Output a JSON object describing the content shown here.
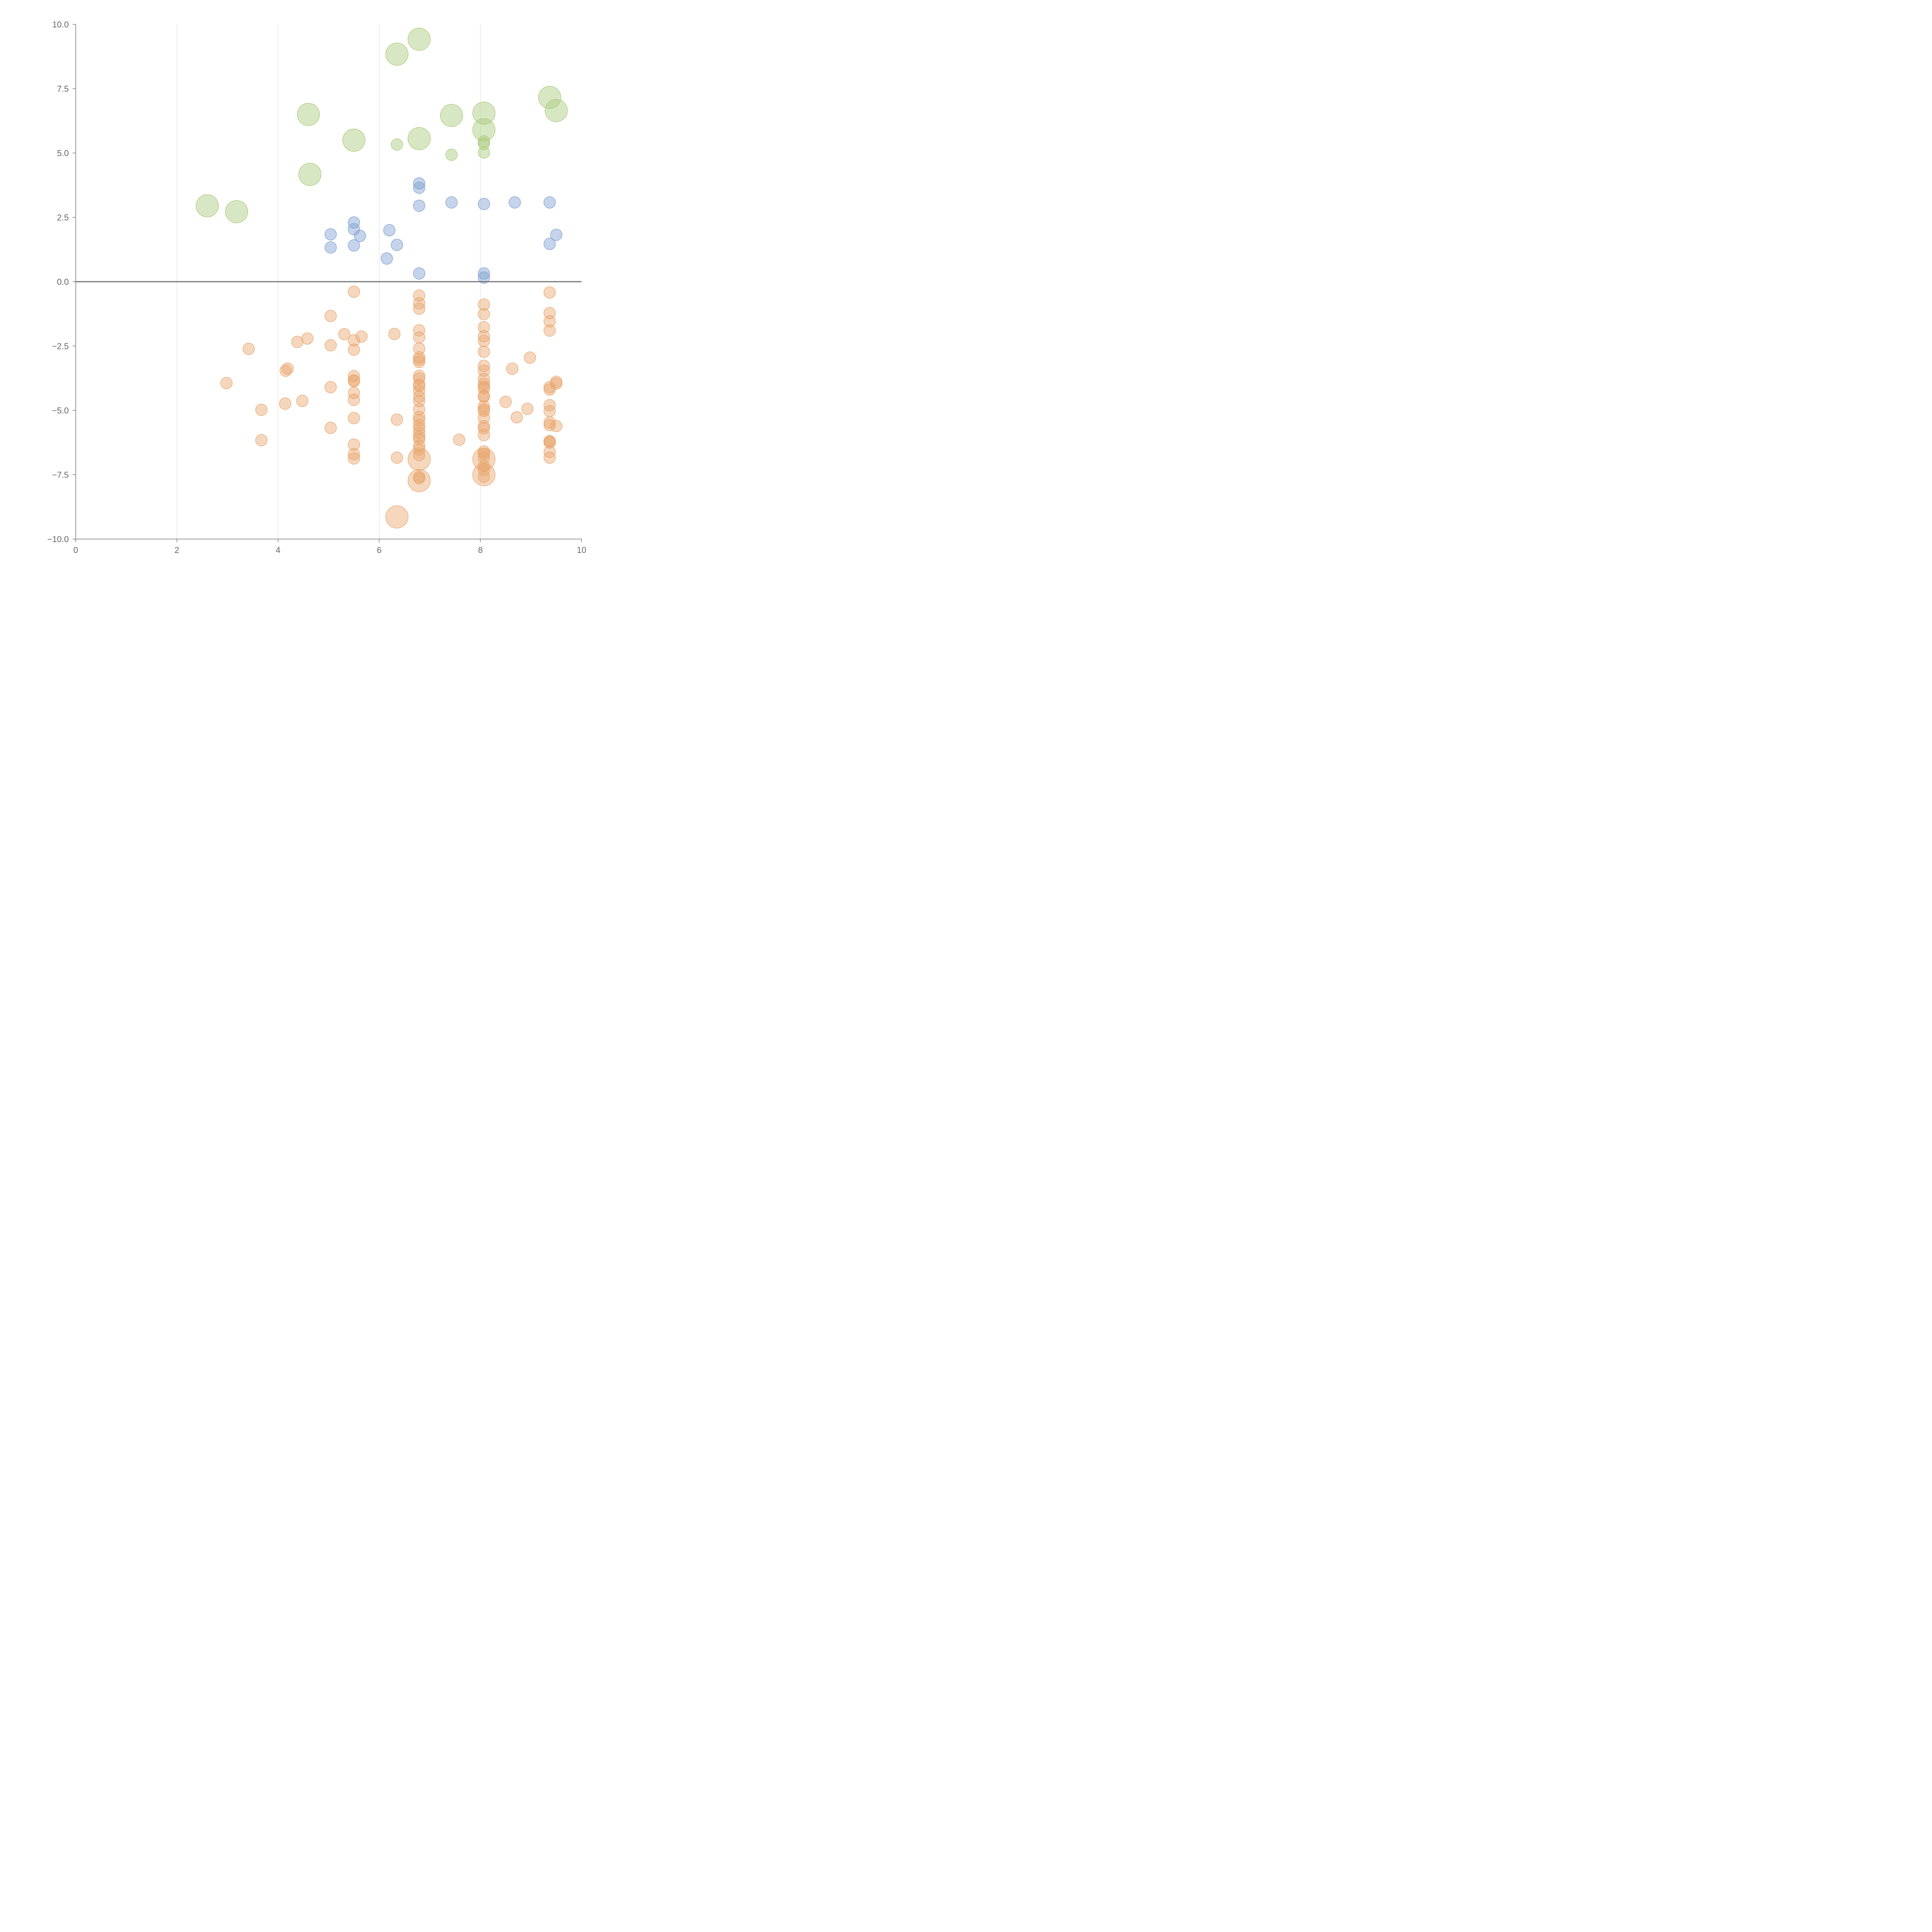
{
  "chart_data": {
    "type": "scatter",
    "title": "",
    "xlabel": "",
    "ylabel": "",
    "xlim": [
      0,
      10
    ],
    "ylim": [
      -10,
      10
    ],
    "x_ticks": [
      "0",
      "2",
      "4",
      "6",
      "8",
      "10"
    ],
    "y_ticks": [
      "10.0",
      "7.5",
      "5.0",
      "2.5",
      "0.0",
      "−2.5",
      "−5.0",
      "−7.5",
      "−10.0"
    ],
    "x_tick_values": [
      0,
      2,
      4,
      6,
      8,
      10
    ],
    "y_tick_values": [
      10,
      7.5,
      5,
      2.5,
      0,
      -2.5,
      -5,
      -7.5,
      -10
    ],
    "grid": "vertical",
    "reference_line_y": 0,
    "series": [
      {
        "color": "#a9c97a",
        "x": [
          2.6,
          3.18,
          4.6,
          4.63,
          5.5,
          6.35,
          6.35,
          6.79,
          6.79,
          7.43,
          7.43,
          8.07,
          8.07,
          8.07,
          8.07,
          8.07,
          9.37,
          9.5
        ],
        "y": [
          2.95,
          2.72,
          6.5,
          4.17,
          5.5,
          8.84,
          5.33,
          9.42,
          5.56,
          6.46,
          4.93,
          6.55,
          5.9,
          5.45,
          5.35,
          5.02,
          7.16,
          6.65
        ],
        "size": [
          2,
          2,
          2,
          2,
          2,
          2,
          1,
          2,
          2,
          2,
          1,
          2,
          2,
          1,
          1,
          1,
          2,
          2
        ]
      },
      {
        "color": "#7fa0d0",
        "x": [
          5.04,
          5.04,
          5.5,
          5.5,
          5.5,
          5.62,
          6.15,
          6.2,
          6.35,
          6.79,
          6.79,
          6.79,
          6.79,
          7.43,
          8.07,
          8.07,
          8.07,
          8.68,
          9.37,
          9.37,
          9.5
        ],
        "y": [
          1.84,
          1.33,
          2.3,
          2.04,
          1.41,
          1.78,
          0.9,
          2.0,
          1.43,
          3.82,
          3.65,
          2.95,
          0.32,
          3.08,
          3.02,
          0.32,
          0.16,
          3.08,
          3.08,
          1.47,
          1.82
        ],
        "size": [
          1,
          1,
          1,
          1,
          1,
          1,
          1,
          1,
          1,
          1,
          1,
          1,
          1,
          1,
          1,
          1,
          1,
          1,
          1,
          1,
          1
        ]
      },
      {
        "color": "#e9a66f",
        "x": [
          2.98,
          3.42,
          3.67,
          3.67,
          4.14,
          4.15,
          4.19,
          4.38,
          4.48,
          4.58,
          5.04,
          5.04,
          5.04,
          5.04,
          5.31,
          5.5,
          5.5,
          5.5,
          5.5,
          5.5,
          5.5,
          5.5,
          5.5,
          5.5,
          5.5,
          5.5,
          5.5,
          5.65,
          6.3,
          6.35,
          6.35,
          6.35,
          6.79,
          6.79,
          6.79,
          6.79,
          6.79,
          6.79,
          6.79,
          6.79,
          6.79,
          6.79,
          6.79,
          6.79,
          6.79,
          6.79,
          6.79,
          6.79,
          6.79,
          6.79,
          6.79,
          6.79,
          6.79,
          6.79,
          6.79,
          6.79,
          6.79,
          6.79,
          6.79,
          6.79,
          6.79,
          6.79,
          6.79,
          7.58,
          8.07,
          8.07,
          8.07,
          8.07,
          8.07,
          8.07,
          8.07,
          8.07,
          8.07,
          8.07,
          8.07,
          8.07,
          8.07,
          8.07,
          8.07,
          8.07,
          8.07,
          8.07,
          8.07,
          8.07,
          8.07,
          8.07,
          8.07,
          8.07,
          8.07,
          8.07,
          8.07,
          8.07,
          8.07,
          8.5,
          8.63,
          8.72,
          8.93,
          8.98,
          9.37,
          9.37,
          9.37,
          9.37,
          9.37,
          9.37,
          9.37,
          9.37,
          9.37,
          9.37,
          9.37,
          9.37,
          9.37,
          9.37,
          9.37,
          9.5,
          9.5,
          9.5
        ],
        "y": [
          -3.94,
          -2.61,
          -4.98,
          -6.16,
          -4.74,
          -3.46,
          -3.38,
          -2.34,
          -4.63,
          -2.21,
          -1.33,
          -2.47,
          -4.1,
          -5.68,
          -2.04,
          -0.39,
          -2.28,
          -2.64,
          -3.67,
          -3.84,
          -3.86,
          -4.32,
          -4.59,
          -5.3,
          -6.33,
          -6.7,
          -6.87,
          -2.13,
          -2.03,
          -5.36,
          -6.84,
          -9.14,
          -0.54,
          -0.84,
          -1.05,
          -1.89,
          -2.17,
          -2.6,
          -2.94,
          -3.03,
          -3.12,
          -3.66,
          -3.76,
          -4.0,
          -4.05,
          -4.24,
          -4.47,
          -4.64,
          -4.96,
          -5.25,
          -5.38,
          -5.58,
          -5.71,
          -5.87,
          -6.03,
          -6.12,
          -6.38,
          -6.52,
          -6.74,
          -6.9,
          -7.59,
          -7.64,
          -7.73,
          -6.14,
          -0.89,
          -1.26,
          -1.77,
          -2.12,
          -2.3,
          -2.72,
          -3.27,
          -3.46,
          -3.78,
          -3.97,
          -4.08,
          -4.14,
          -4.44,
          -4.47,
          -4.84,
          -4.96,
          -5.02,
          -5.29,
          -5.61,
          -5.7,
          -5.96,
          -6.6,
          -6.69,
          -6.83,
          -6.9,
          -7.17,
          -7.31,
          -7.5,
          -7.58,
          -4.67,
          -3.38,
          -5.27,
          -4.94,
          -2.95,
          -0.42,
          -1.22,
          -1.54,
          -1.9,
          -4.1,
          -4.19,
          -4.8,
          -5.03,
          -5.47,
          -5.57,
          -6.2,
          -6.25,
          -6.61,
          -6.84,
          -6.2,
          -3.89,
          -3.96,
          -5.61
        ],
        "size": [
          1,
          1,
          1,
          1,
          1,
          1,
          1,
          1,
          1,
          1,
          1,
          1,
          1,
          1,
          1,
          1,
          1,
          1,
          1,
          1,
          1,
          1,
          1,
          1,
          1,
          1,
          1,
          1,
          1,
          1,
          1,
          2,
          1,
          1,
          1,
          1,
          1,
          1,
          1,
          1,
          1,
          1,
          1,
          1,
          1,
          1,
          1,
          1,
          1,
          1,
          1,
          1,
          1,
          1,
          1,
          1,
          1,
          1,
          1,
          2,
          1,
          1,
          2,
          1,
          1,
          1,
          1,
          1,
          1,
          1,
          1,
          1,
          1,
          1,
          1,
          1,
          1,
          1,
          1,
          1,
          1,
          1,
          1,
          1,
          1,
          1,
          1,
          1,
          2,
          1,
          1,
          2,
          1,
          1,
          1,
          1,
          1,
          1,
          1,
          1,
          1,
          1,
          1,
          1,
          1,
          1,
          1,
          1,
          1,
          1,
          1,
          1,
          1,
          1,
          1,
          1
        ]
      }
    ]
  }
}
